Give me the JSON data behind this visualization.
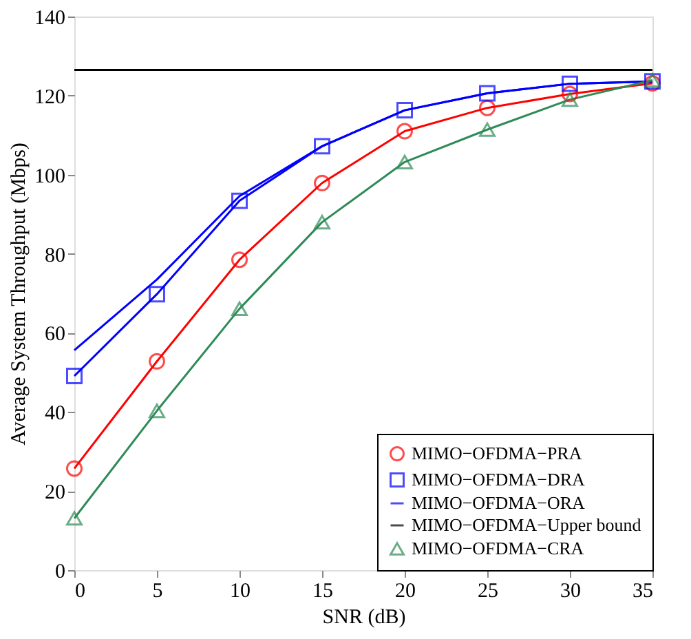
{
  "chart_data": {
    "type": "line",
    "xlabel": "SNR (dB)",
    "ylabel": "Average System Throughput  (Mbps)",
    "x": [
      0,
      5,
      10,
      15,
      20,
      25,
      30,
      35
    ],
    "xlim": [
      0,
      35
    ],
    "xticks": [
      0,
      5,
      10,
      15,
      20,
      25,
      30,
      35
    ],
    "ylim": [
      0,
      140
    ],
    "yticks": [
      0,
      20,
      40,
      60,
      80,
      100,
      120,
      140
    ],
    "grid": false,
    "legend": "bottom right",
    "series": [
      {
        "name": "MIMO−OFDMA−PRA",
        "color": "#ff0000",
        "marker": "circle",
        "values": [
          25.7,
          52.8,
          78.5,
          97.9,
          111.0,
          116.9,
          120.4,
          123.1
        ]
      },
      {
        "name": "MIMO−OFDMA−DRA",
        "color": "#0000ff",
        "marker": "square",
        "values": [
          49.1,
          69.8,
          93.4,
          107.2,
          116.3,
          120.6,
          123.0,
          123.6
        ]
      },
      {
        "name": "MIMO−OFDMA−ORA",
        "color": "#0000ff",
        "marker": "none",
        "values": [
          55.6,
          73.5,
          94.6,
          107.2,
          116.3,
          120.6,
          123.0,
          123.6
        ]
      },
      {
        "name": "MIMO−OFDMA−Upper bound",
        "color": "#000000",
        "marker": "none",
        "values": [
          126.5,
          126.5,
          126.5,
          126.5,
          126.5,
          126.5,
          126.5,
          126.5
        ]
      },
      {
        "name": "MIMO−OFDMA−CRA",
        "color": "#2e8b57",
        "marker": "triangle",
        "values": [
          13.1,
          40.3,
          66.1,
          88.0,
          103.2,
          111.4,
          119.0,
          123.9
        ]
      }
    ]
  }
}
